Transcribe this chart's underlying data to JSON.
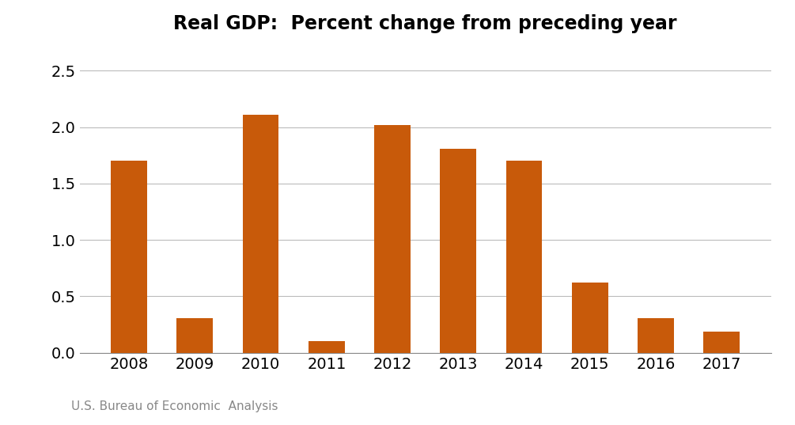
{
  "title": "Real GDP:  Percent change from preceding year",
  "categories": [
    "2008",
    "2009",
    "2010",
    "2011",
    "2012",
    "2013",
    "2014",
    "2015",
    "2016",
    "2017"
  ],
  "values": [
    1.7,
    0.31,
    2.11,
    0.1,
    2.02,
    1.81,
    1.7,
    0.62,
    0.31,
    0.19
  ],
  "bar_color": "#C85A0A",
  "ylim": [
    0,
    2.75
  ],
  "yticks": [
    0.0,
    0.5,
    1.0,
    1.5,
    2.0,
    2.5
  ],
  "footnote": "U.S. Bureau of Economic  Analysis",
  "title_fontsize": 17,
  "tick_fontsize": 14,
  "footnote_fontsize": 11,
  "background_color": "#ffffff",
  "grid_color": "#bbbbbb",
  "bar_width": 0.55
}
